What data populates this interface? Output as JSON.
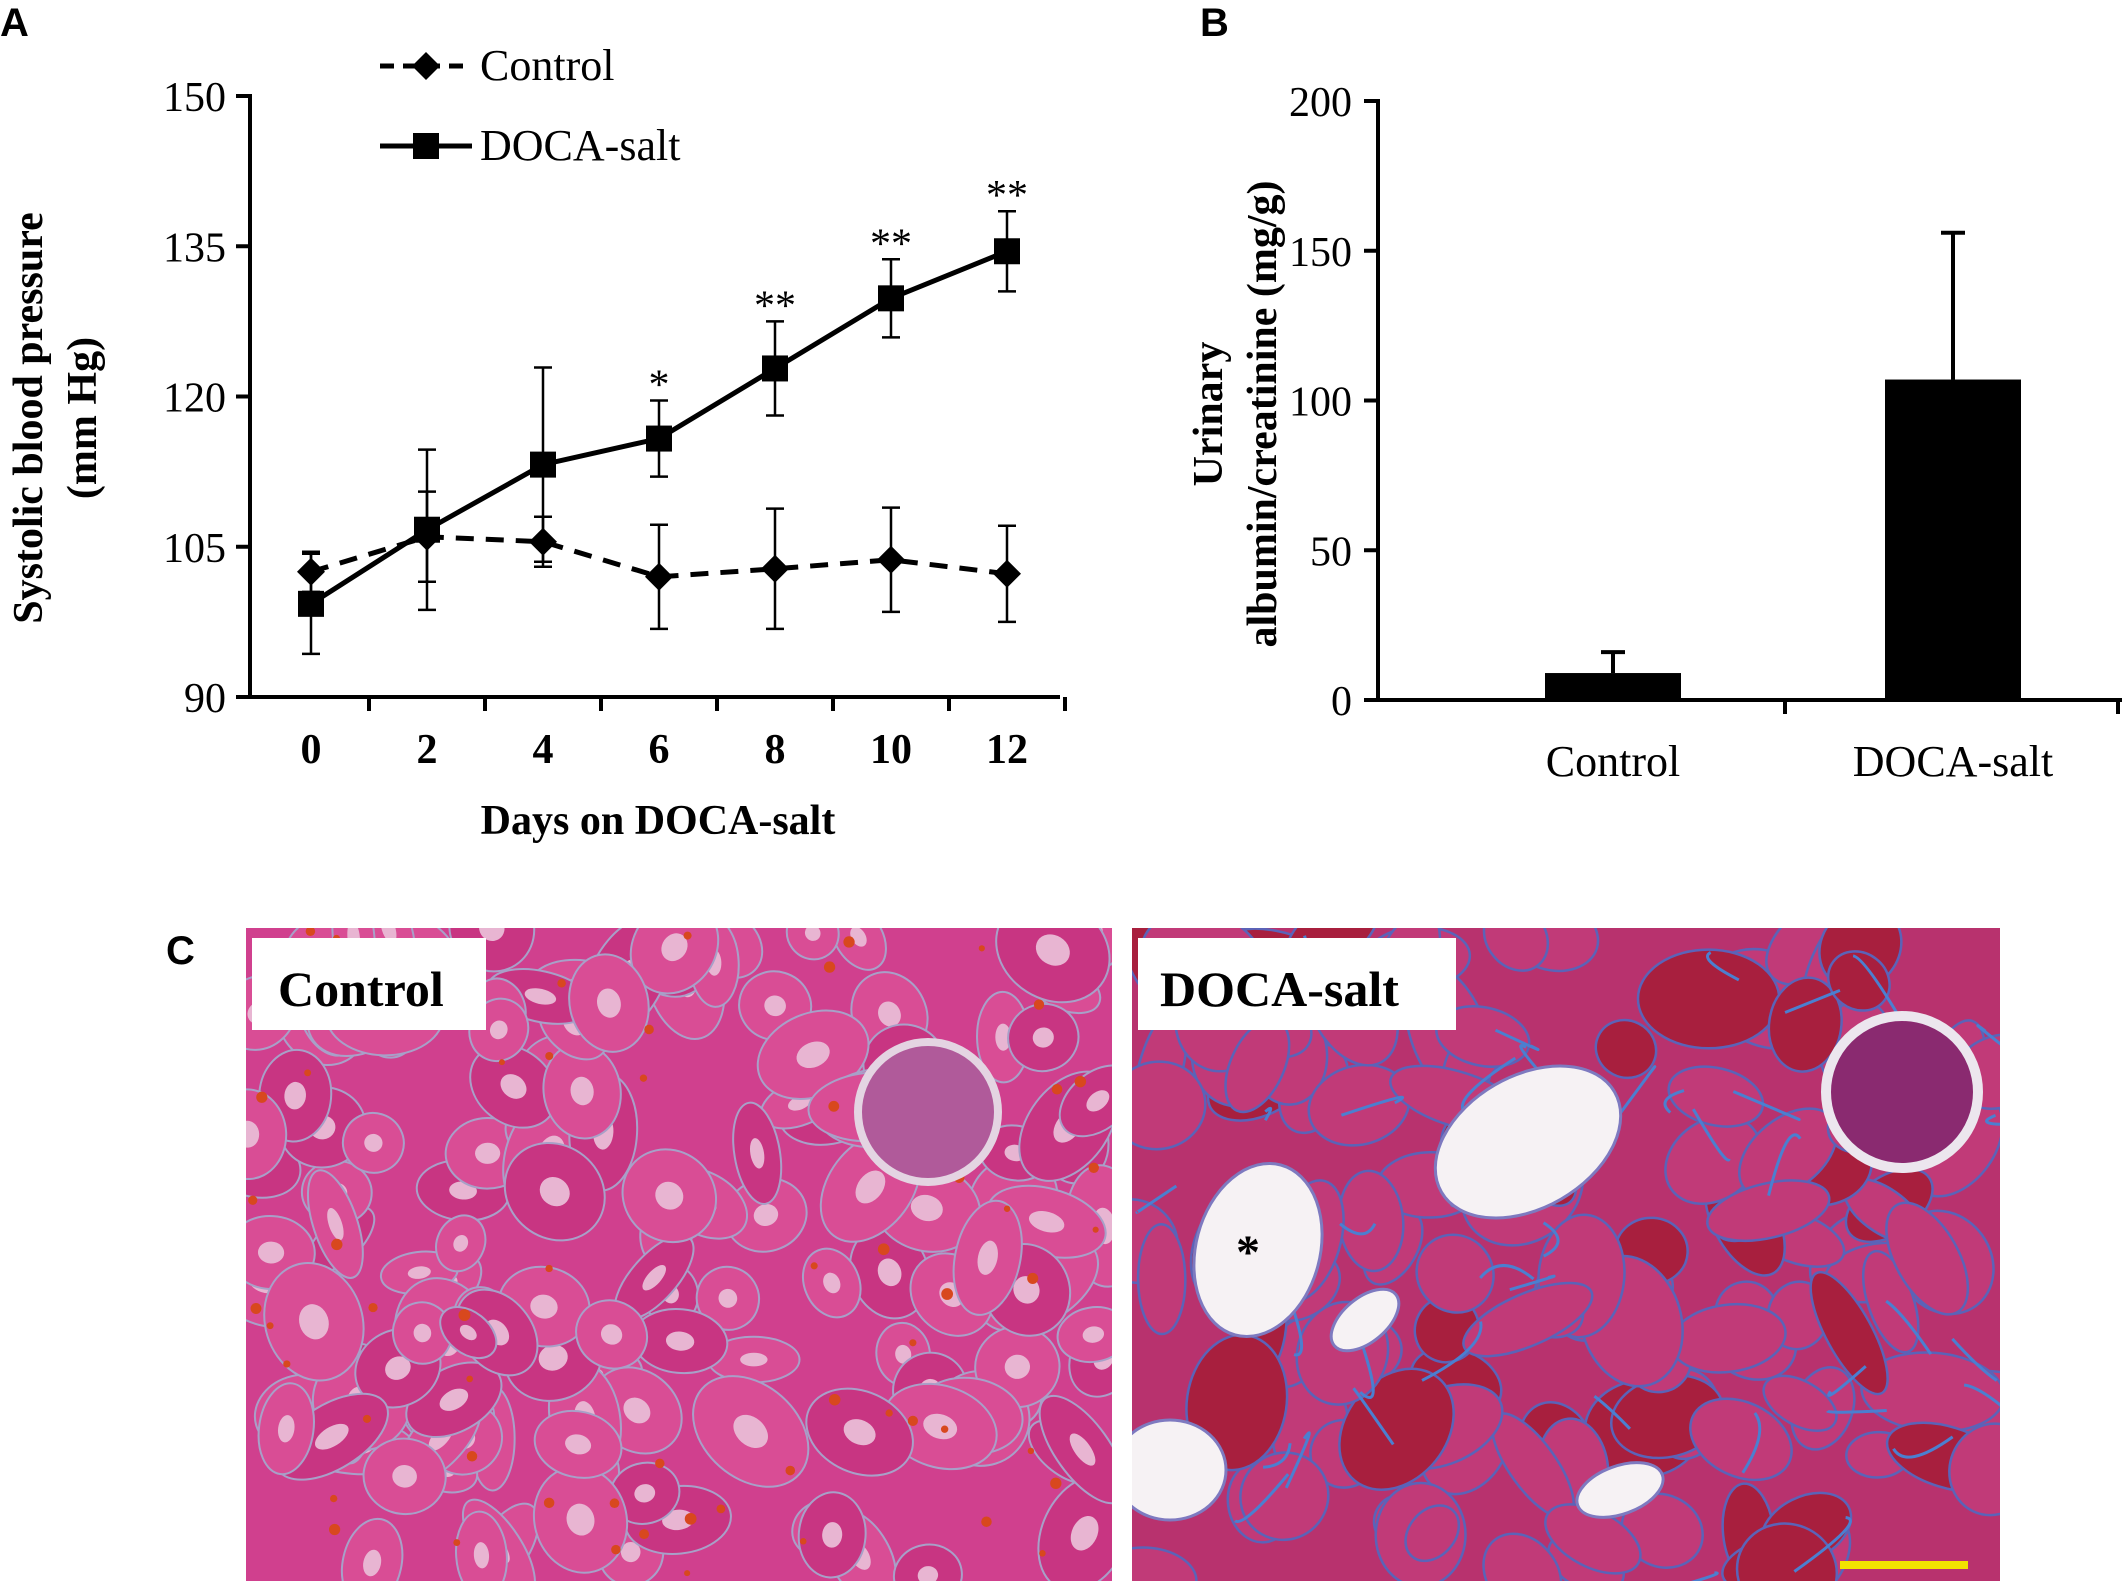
{
  "panels": {
    "a": "A",
    "b": "B",
    "c": "C"
  },
  "chart_data": [
    {
      "type": "line",
      "panel": "A",
      "xlabel": "Days on DOCA-salt",
      "ylabel_line1": "Systolic blood pressure",
      "ylabel_line2": "(mm Hg)",
      "x": [
        0,
        2,
        4,
        6,
        8,
        10,
        12
      ],
      "x_ticks": [
        "0",
        "2",
        "4",
        "6",
        "8",
        "10",
        "12"
      ],
      "y_ticks": [
        "90",
        "105",
        "120",
        "135",
        "150"
      ],
      "ylim": [
        90,
        150
      ],
      "legend_position": "top-left",
      "series": [
        {
          "name": "Control",
          "style": "dashed",
          "marker": "diamond",
          "values": [
            102.5,
            106,
            105.5,
            102,
            102.8,
            103.7,
            102.3
          ],
          "errors": [
            2,
            4.5,
            2.5,
            5.2,
            6,
            5.2,
            4.8
          ]
        },
        {
          "name": "DOCA-salt",
          "style": "solid",
          "marker": "square",
          "values": [
            99.3,
            106.7,
            113.2,
            115.8,
            122.8,
            129.8,
            134.5
          ],
          "errors": [
            5,
            8,
            9.7,
            3.8,
            4.7,
            3.9,
            4
          ]
        }
      ],
      "significance": [
        "",
        "",
        "",
        "*",
        "**",
        "**",
        "**"
      ]
    },
    {
      "type": "bar",
      "panel": "B",
      "categories": [
        "Control",
        "DOCA-salt"
      ],
      "values": [
        9,
        107
      ],
      "errors": [
        7,
        49
      ],
      "ylabel_line1": "Urinary",
      "ylabel_line2": "albumin/creatinine (mg/g)",
      "y_ticks": [
        "0",
        "50",
        "100",
        "150",
        "200"
      ],
      "ylim": [
        0,
        200
      ]
    }
  ],
  "histology": {
    "control_label": "Control",
    "doca_label": "DOCA-salt",
    "lumen_asterisk": "*"
  },
  "colors": {
    "ink": "#000000",
    "tissue_pink": "#d63f8c",
    "tissue_deep": "#c02a6e",
    "lumen": "#f7f4f6",
    "fibrosis_blue": "#3f6fc4",
    "scale_bar": "#f2e200"
  }
}
